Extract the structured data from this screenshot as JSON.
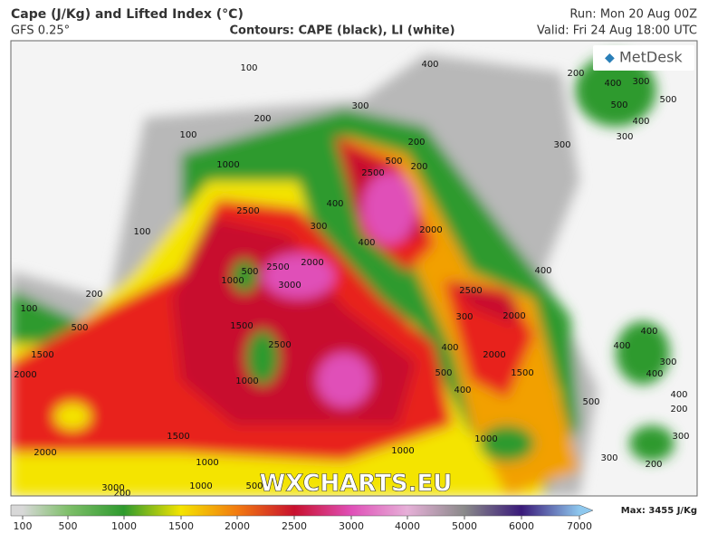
{
  "header": {
    "title": "Cape (J/Kg) and Lifted Index (°C)",
    "model": "GFS 0.25°",
    "contours": "Contours: CAPE (black), LI (white)",
    "run": "Run: Mon 20 Aug 00Z",
    "valid": "Valid: Fri 24 Aug 18:00 UTC"
  },
  "map": {
    "logo": "MetDesk",
    "watermark": "WXCHARTS.EU",
    "contour_labels": [
      "100",
      "200",
      "100",
      "1000",
      "300",
      "400",
      "200",
      "500",
      "2500",
      "200",
      "400",
      "300",
      "2500",
      "100",
      "400",
      "2000",
      "2500",
      "2000",
      "3000",
      "500",
      "1000",
      "200",
      "100",
      "500",
      "1500",
      "2500",
      "1000",
      "300",
      "2500",
      "2000",
      "400",
      "400",
      "1500",
      "2000",
      "500",
      "2000",
      "1500",
      "400",
      "1500",
      "2000",
      "1000",
      "1000",
      "1000",
      "1000",
      "500",
      "3000",
      "200",
      "200",
      "300",
      "400",
      "500",
      "500",
      "400",
      "300",
      "300",
      "400",
      "400",
      "400",
      "300",
      "400",
      "200",
      "500",
      "300",
      "200",
      "300"
    ]
  },
  "colorbar": {
    "ticks": [
      100,
      500,
      1000,
      1500,
      2000,
      2500,
      3000,
      4000,
      5000,
      6000,
      7000
    ],
    "colors": [
      "#d8d8d8",
      "#7fbf6a",
      "#2e9a2e",
      "#f4e400",
      "#f27a10",
      "#c8102e",
      "#e050b8",
      "#e6b0d8",
      "#8a8a8a",
      "#3a1a7a",
      "#8ec8ee"
    ],
    "max_label": "Max: 3455 J/Kg"
  }
}
